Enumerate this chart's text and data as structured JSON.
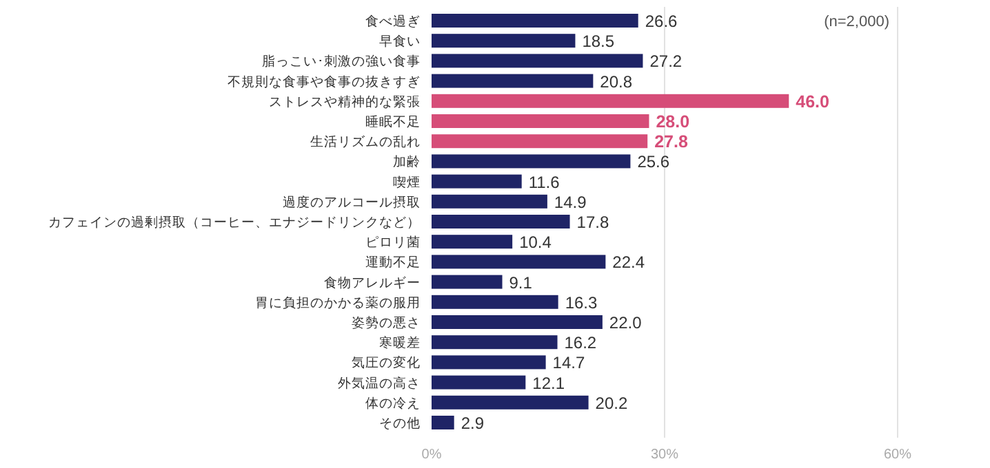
{
  "chart_data": {
    "type": "bar",
    "orientation": "horizontal",
    "categories": [
      "食べ過ぎ",
      "早食い",
      "脂っこい･刺激の強い食事",
      "不規則な食事や食事の抜きすぎ",
      "ストレスや精神的な緊張",
      "睡眠不足",
      "生活リズムの乱れ",
      "加齢",
      "喫煙",
      "過度のアルコール摂取",
      "カフェインの過剰摂取（コーヒー、エナジードリンクなど）",
      "ピロリ菌",
      "運動不足",
      "食物アレルギー",
      "胃に負担のかかる薬の服用",
      "姿勢の悪さ",
      "寒暖差",
      "気圧の変化",
      "外気温の高さ",
      "体の冷え",
      "その他"
    ],
    "values": [
      26.6,
      18.5,
      27.2,
      20.8,
      46.0,
      28.0,
      27.8,
      25.6,
      11.6,
      14.9,
      17.8,
      10.4,
      22.4,
      9.1,
      16.3,
      22.0,
      16.2,
      14.7,
      12.1,
      20.2,
      2.9
    ],
    "value_labels": [
      "26.6",
      "18.5",
      "27.2",
      "20.8",
      "46.0",
      "28.0",
      "27.8",
      "25.6",
      "11.6",
      "14.9",
      "17.8",
      "10.4",
      "22.4",
      "9.1",
      "16.3",
      "22.0",
      "16.2",
      "14.7",
      "12.1",
      "20.2",
      "2.9"
    ],
    "color": "#1f2466",
    "colors": [
      "#1f2466",
      "#1f2466",
      "#1f2466",
      "#1f2466",
      "#d64d78",
      "#d64d78",
      "#d64d78",
      "#1f2466",
      "#1f2466",
      "#1f2466",
      "#1f2466",
      "#1f2466",
      "#1f2466",
      "#1f2466",
      "#1f2466",
      "#1f2466",
      "#1f2466",
      "#1f2466",
      "#1f2466",
      "#1f2466",
      "#1f2466"
    ],
    "xlim": [
      0,
      60
    ],
    "xticks": [
      {
        "value": 0,
        "label": "0%"
      },
      {
        "value": 30,
        "label": "30%"
      },
      {
        "value": 60,
        "label": "60%"
      }
    ],
    "grid": "x",
    "annotations": [
      "(n=2,000)"
    ]
  }
}
